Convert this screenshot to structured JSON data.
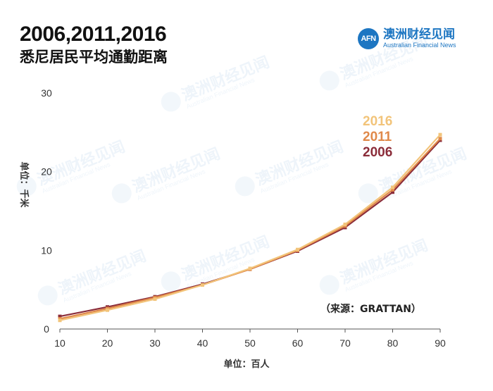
{
  "header": {
    "title_line1": "2006,2011,2016",
    "title_line2": "悉尼居民平均通勤距离"
  },
  "logo": {
    "badge": "AFN",
    "name_cn": "澳洲财经见闻",
    "name_en": "Australian Financial News",
    "color": "#1d76c2"
  },
  "chart_data": {
    "type": "line",
    "x": [
      10,
      20,
      30,
      40,
      50,
      60,
      70,
      80,
      90
    ],
    "xticks": [
      "10",
      "20",
      "30",
      "40",
      "50",
      "60",
      "70",
      "80",
      "90"
    ],
    "yticks": [
      "0",
      "10",
      "20",
      "30"
    ],
    "xlim": [
      10,
      90
    ],
    "ylim": [
      0,
      30
    ],
    "xlabel": "单位：百人",
    "ylabel": "单位：千米",
    "grid": false,
    "legend_position": "top-right",
    "series": [
      {
        "name": "2006",
        "color": "#8b2d3a",
        "values": [
          1.6,
          2.8,
          4.1,
          5.7,
          7.6,
          9.9,
          12.9,
          17.4,
          24.0
        ]
      },
      {
        "name": "2011",
        "color": "#e0894a",
        "values": [
          1.3,
          2.6,
          4.0,
          5.6,
          7.6,
          10.0,
          13.1,
          17.7,
          24.2
        ]
      },
      {
        "name": "2016",
        "color": "#f2c47a",
        "values": [
          1.1,
          2.4,
          3.8,
          5.6,
          7.7,
          10.1,
          13.3,
          18.0,
          24.7
        ]
      }
    ],
    "legend_order": [
      "2016",
      "2011",
      "2006"
    ],
    "source_note": "（来源：GRATTAN）"
  }
}
